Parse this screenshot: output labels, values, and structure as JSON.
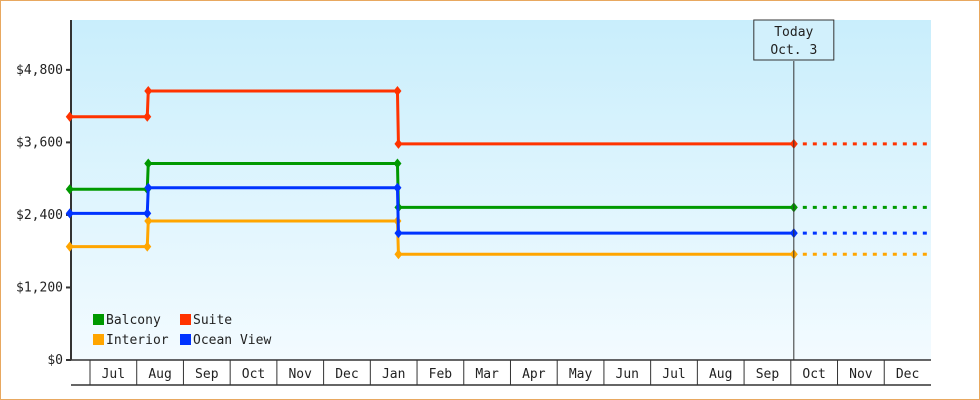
{
  "chart_data": {
    "type": "line",
    "step": true,
    "title": "",
    "xlabel": "",
    "ylabel": "",
    "ylim": [
      0,
      5625
    ],
    "y_ticks": [
      "$0",
      "$1,200",
      "$2,400",
      "$3,600",
      "$4,800"
    ],
    "y_tick_values": [
      0,
      1200,
      2400,
      3600,
      4800
    ],
    "x_tick_labels": [
      "Jul",
      "Aug",
      "Sep",
      "Oct",
      "Nov",
      "Dec",
      "Jan",
      "Feb",
      "Mar",
      "Apr",
      "May",
      "Jun",
      "Jul",
      "Aug",
      "Sep",
      "Oct",
      "Nov",
      "Dec"
    ],
    "x_dates": [
      "Jun 18",
      "Aug 8",
      "Jan 19",
      "Oct 3"
    ],
    "today_marker": {
      "line1": "Today",
      "line2": "Oct. 3"
    },
    "projection": "dashed to end of axis after today",
    "legend_position": "bottom-left",
    "background": "gradient light blue",
    "series": [
      {
        "name": "Balcony",
        "color": "#009900",
        "values": [
          2825,
          3250,
          2525
        ]
      },
      {
        "name": "Suite",
        "color": "#ff3300",
        "values": [
          4025,
          4450,
          3575
        ]
      },
      {
        "name": "Interior",
        "color": "#ffa500",
        "values": [
          1875,
          2300,
          1750
        ]
      },
      {
        "name": "Ocean View",
        "color": "#0033ff",
        "values": [
          2425,
          2850,
          2100
        ]
      }
    ]
  }
}
